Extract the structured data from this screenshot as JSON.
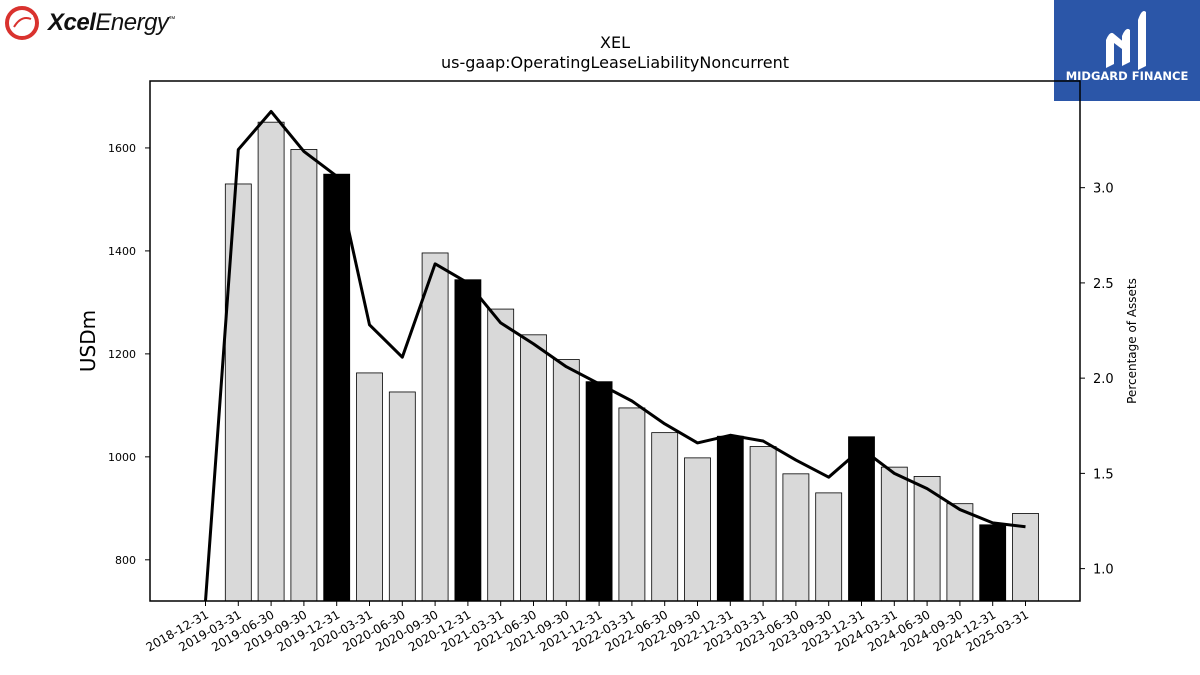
{
  "logos": {
    "left": {
      "bold": "Xcel",
      "rest": "Energy",
      "mark": "™"
    },
    "right": {
      "text": "MIDGARD FINANCE"
    }
  },
  "colors": {
    "bar_default": "#d9d9d9",
    "bar_highlight": "#000000",
    "line": "#000000",
    "right_logo_bg": "#2b56a8",
    "left_logo_red": "#d9322e"
  },
  "chart_data": {
    "type": "bar",
    "title": "XEL",
    "subtitle": "us-gaap:OperatingLeaseLiabilityNoncurrent",
    "ylabel": "USDm",
    "ylabel_right": "Percentage of Assets",
    "ylim": [
      720,
      1730
    ],
    "ylim_right": [
      0.83,
      3.56
    ],
    "yticks": [
      800,
      1000,
      1200,
      1400,
      1600
    ],
    "yticks_right": [
      1.0,
      1.5,
      2.0,
      2.5,
      3.0
    ],
    "yticks_right_labels": [
      "1.0",
      "1.5",
      "2.0",
      "2.5",
      "3.0"
    ],
    "categories": [
      "2018-12-31",
      "2019-03-31",
      "2019-06-30",
      "2019-09-30",
      "2019-12-31",
      "2020-03-31",
      "2020-06-30",
      "2020-09-30",
      "2020-12-31",
      "2021-03-31",
      "2021-06-30",
      "2021-09-30",
      "2021-12-31",
      "2022-03-31",
      "2022-06-30",
      "2022-09-30",
      "2022-12-31",
      "2023-03-31",
      "2023-06-30",
      "2023-09-30",
      "2023-12-31",
      "2024-03-31",
      "2024-06-30",
      "2024-09-30",
      "2024-12-31",
      "2025-03-31"
    ],
    "series": [
      {
        "type": "bar",
        "values": [
          null,
          1530,
          1650,
          1597,
          1549,
          1163,
          1126,
          1396,
          1344,
          1287,
          1237,
          1189,
          1146,
          1095,
          1047,
          998,
          1040,
          1020,
          967,
          930,
          1039,
          980,
          962,
          909,
          868,
          890
        ],
        "highlight": [
          false,
          false,
          false,
          false,
          true,
          false,
          false,
          false,
          true,
          false,
          false,
          false,
          true,
          false,
          false,
          false,
          true,
          false,
          false,
          false,
          true,
          false,
          false,
          false,
          true,
          false
        ]
      },
      {
        "type": "line",
        "axis": "right",
        "values": [
          0.82,
          3.2,
          3.4,
          3.19,
          3.06,
          2.28,
          2.11,
          2.6,
          2.5,
          2.29,
          2.18,
          2.06,
          1.97,
          1.88,
          1.76,
          1.66,
          1.7,
          1.67,
          1.57,
          1.48,
          1.63,
          1.5,
          1.42,
          1.31,
          1.24,
          1.22
        ]
      }
    ],
    "grid": false,
    "legend": "none"
  }
}
